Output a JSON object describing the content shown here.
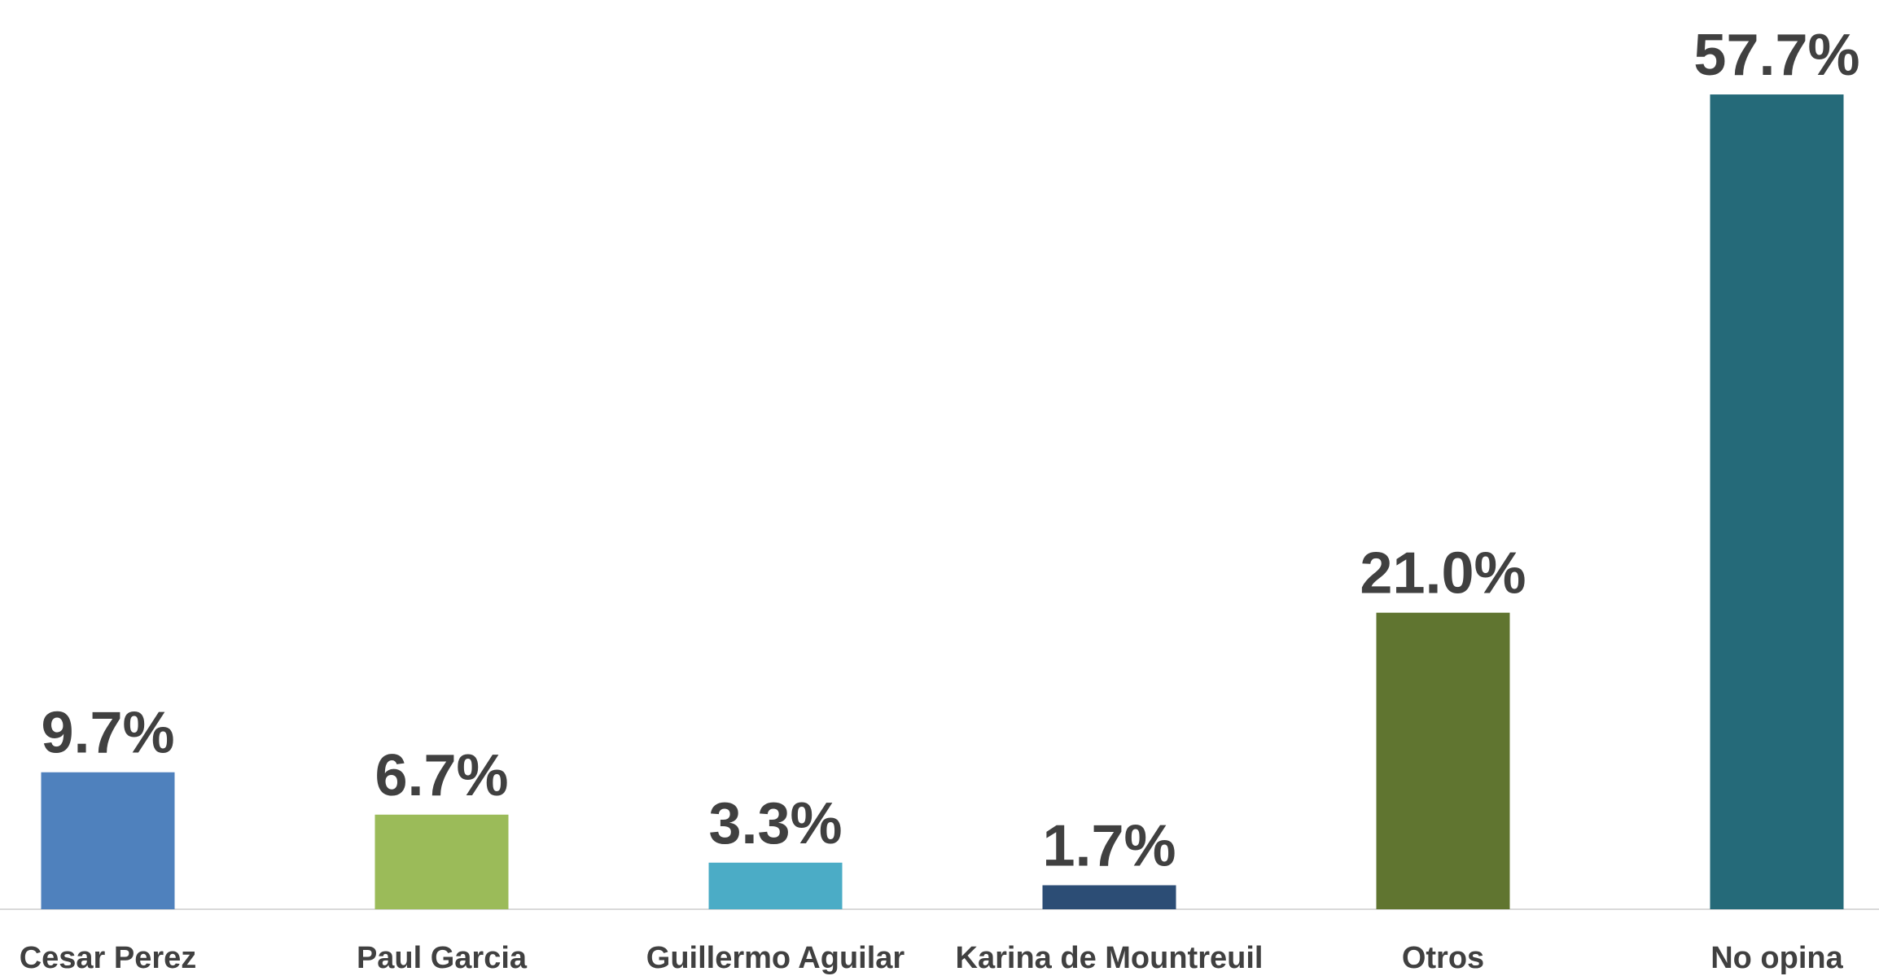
{
  "chart_data": {
    "type": "bar",
    "categories": [
      "Cesar Perez",
      "Paul Garcia",
      "Guillermo Aguilar",
      "Karina de Mountreuil",
      "Otros",
      "No opina"
    ],
    "values": [
      9.7,
      6.7,
      3.3,
      1.7,
      21.0,
      57.7
    ],
    "value_labels": [
      "9.7%",
      "6.7%",
      "3.3%",
      "1.7%",
      "21.0%",
      "57.7%"
    ],
    "colors": [
      "#4f81bd",
      "#9bbb59",
      "#4bacc6",
      "#2c4d75",
      "#607530",
      "#256a79"
    ]
  }
}
